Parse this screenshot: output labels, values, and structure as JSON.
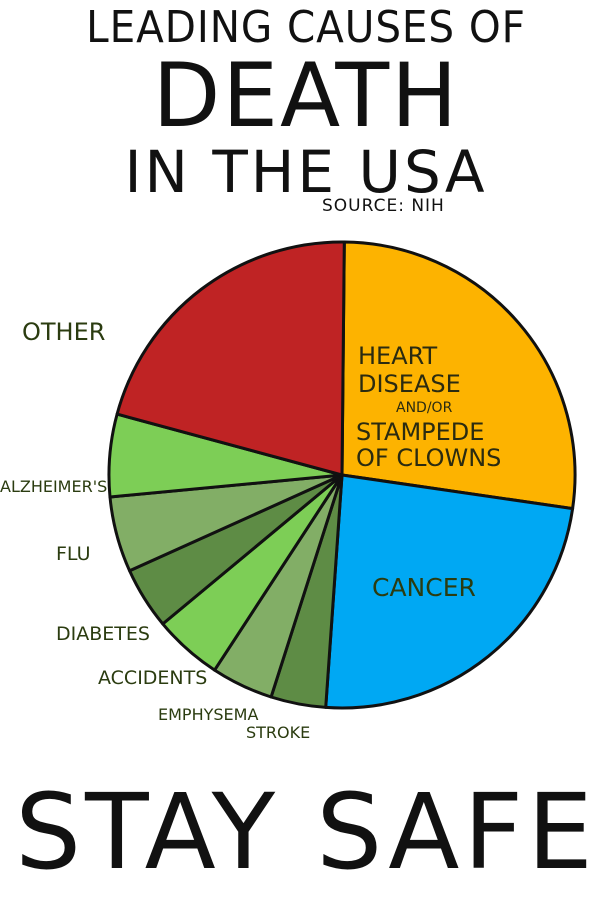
{
  "title_line1": "LEADING CAUSES OF",
  "title_line2": "DEATH",
  "title_line3": "IN THE USA",
  "source": "SOURCE: NIH",
  "footer": "STAY SAFE",
  "chart_data": {
    "type": "pie",
    "title": "LEADING CAUSES OF DEATH IN THE USA",
    "slices": [
      {
        "label": "HEART DISEASE AND/OR STAMPEDE OF CLOWNS",
        "value": 28.5,
        "color": "#fdb300"
      },
      {
        "label": "CANCER",
        "value": 25.0,
        "color": "#00a8f3"
      },
      {
        "label": "STROKE",
        "value": 4.0,
        "color": "#5e8c45"
      },
      {
        "label": "EMPHYSEMA",
        "value": 4.5,
        "color": "#82ae66"
      },
      {
        "label": "ACCIDENTS",
        "value": 5.0,
        "color": "#7dce56"
      },
      {
        "label": "DIABETES",
        "value": 4.5,
        "color": "#5e8c45"
      },
      {
        "label": "FLU",
        "value": 5.5,
        "color": "#82ae66"
      },
      {
        "label": "ALZHEIMER'S",
        "value": 6.0,
        "color": "#7dce56"
      },
      {
        "label": "OTHER",
        "value": 22.0,
        "color": "#bf2324"
      }
    ]
  },
  "labels": {
    "heart_l1": "HEART",
    "heart_l2": "DISEASE",
    "heart_l3": "AND/OR",
    "heart_l4": "STAMPEDE",
    "heart_l5": "OF CLOWNS",
    "cancer": "CANCER",
    "other": "OTHER",
    "alzheimers": "ALZHEIMER'S",
    "flu": "FLU",
    "diabetes": "DIABETES",
    "accidents": "ACCIDENTS",
    "emphysema": "EMPHYSEMA",
    "stroke": "STROKE"
  }
}
